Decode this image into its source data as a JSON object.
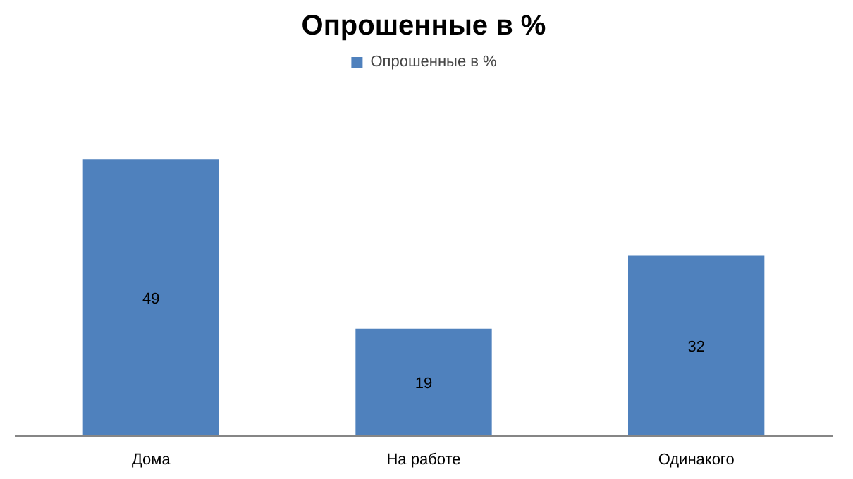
{
  "chart_data": {
    "type": "bar",
    "title": "Опрошенные в %",
    "categories": [
      "Дома",
      "На работе",
      "Одинакого"
    ],
    "series": [
      {
        "name": "Опрошенные в %",
        "color": "#4f81bd",
        "values": [
          49,
          19,
          32
        ]
      }
    ],
    "data_labels": true,
    "legend": "top",
    "grid": false
  }
}
